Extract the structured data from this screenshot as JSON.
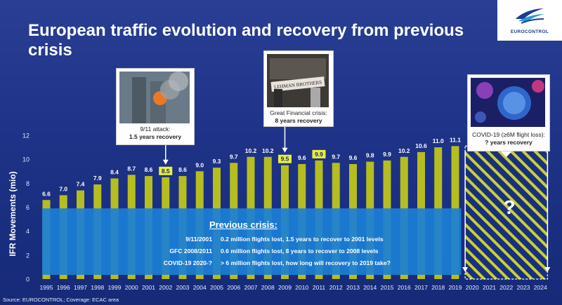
{
  "title": "European traffic evolution and recovery from previous crisis",
  "logo_text": "EUROCONTROL",
  "source": "Source: EUROCONTROL; Coverage: ECAC area",
  "colors": {
    "bar": "#b6bd1f",
    "highlight_label_bg": "#e9ef3b",
    "overlay": "#1b7fd6",
    "hatch": "#c8d12a",
    "arrow": "#ffffff"
  },
  "callouts": {
    "attack": {
      "line1": "9/11 attack:",
      "line2": "1.5 years recovery"
    },
    "gfc": {
      "line1": "Great Financial crisis:",
      "line2": "8 years recovery"
    },
    "covid": {
      "line1": "COVID-19 (≥6M flight loss):",
      "line2": "? years recovery"
    }
  },
  "question_mark": "?",
  "previous_crisis": {
    "title": "Previous crisis:",
    "rows": [
      {
        "event": "9/11/2001",
        "text": "0.2 million flights lost, 1.5 years to recover to 2001 levels"
      },
      {
        "event": "GFC 2008/2011",
        "text": "0.6 million flights lost, 8 years to recover to 2008 levels"
      },
      {
        "event": "COVID-19 2020-?",
        "text": "> 6 million flights lost, how long will recovery to 2019 take?"
      }
    ]
  },
  "chart_data": {
    "type": "bar",
    "ylabel": "IFR Movements (mio)",
    "ylim": [
      0,
      12
    ],
    "yticks": [
      0,
      2,
      4,
      6,
      8,
      10,
      12
    ],
    "categories": [
      "1995",
      "1996",
      "1997",
      "1998",
      "1999",
      "2000",
      "2001",
      "2002",
      "2003",
      "2004",
      "2005",
      "2006",
      "2007",
      "2008",
      "2009",
      "2010",
      "2011",
      "2012",
      "2013",
      "2014",
      "2015",
      "2016",
      "2017",
      "2018",
      "2019",
      "2020",
      "2021",
      "2022",
      "2023",
      "2024"
    ],
    "values": [
      6.6,
      7.0,
      7.4,
      7.9,
      8.4,
      8.7,
      8.6,
      8.5,
      8.6,
      9.0,
      9.3,
      9.7,
      10.2,
      10.2,
      9.5,
      9.6,
      9.9,
      9.7,
      9.6,
      9.8,
      9.9,
      10.2,
      10.6,
      11.0,
      11.1,
      null,
      null,
      null,
      null,
      null
    ],
    "value_labels": [
      "6.6",
      "7.0",
      "7.4",
      "7.9",
      "8.4",
      "8.7",
      "8.6",
      "8.5",
      "8.6",
      "9.0",
      "9.3",
      "9.7",
      "10.2",
      "10.2",
      "9.5",
      "9.6",
      "9.9",
      "9.7",
      "9.6",
      "9.8",
      "9.9",
      "10.2",
      "10.6",
      "11.0",
      "11.1",
      "",
      "",
      "",
      "",
      ""
    ],
    "highlighted": [
      "2002",
      "2009",
      "2011"
    ],
    "forecast_range": [
      "2020",
      "2024"
    ],
    "grid": false,
    "legend": "none"
  }
}
